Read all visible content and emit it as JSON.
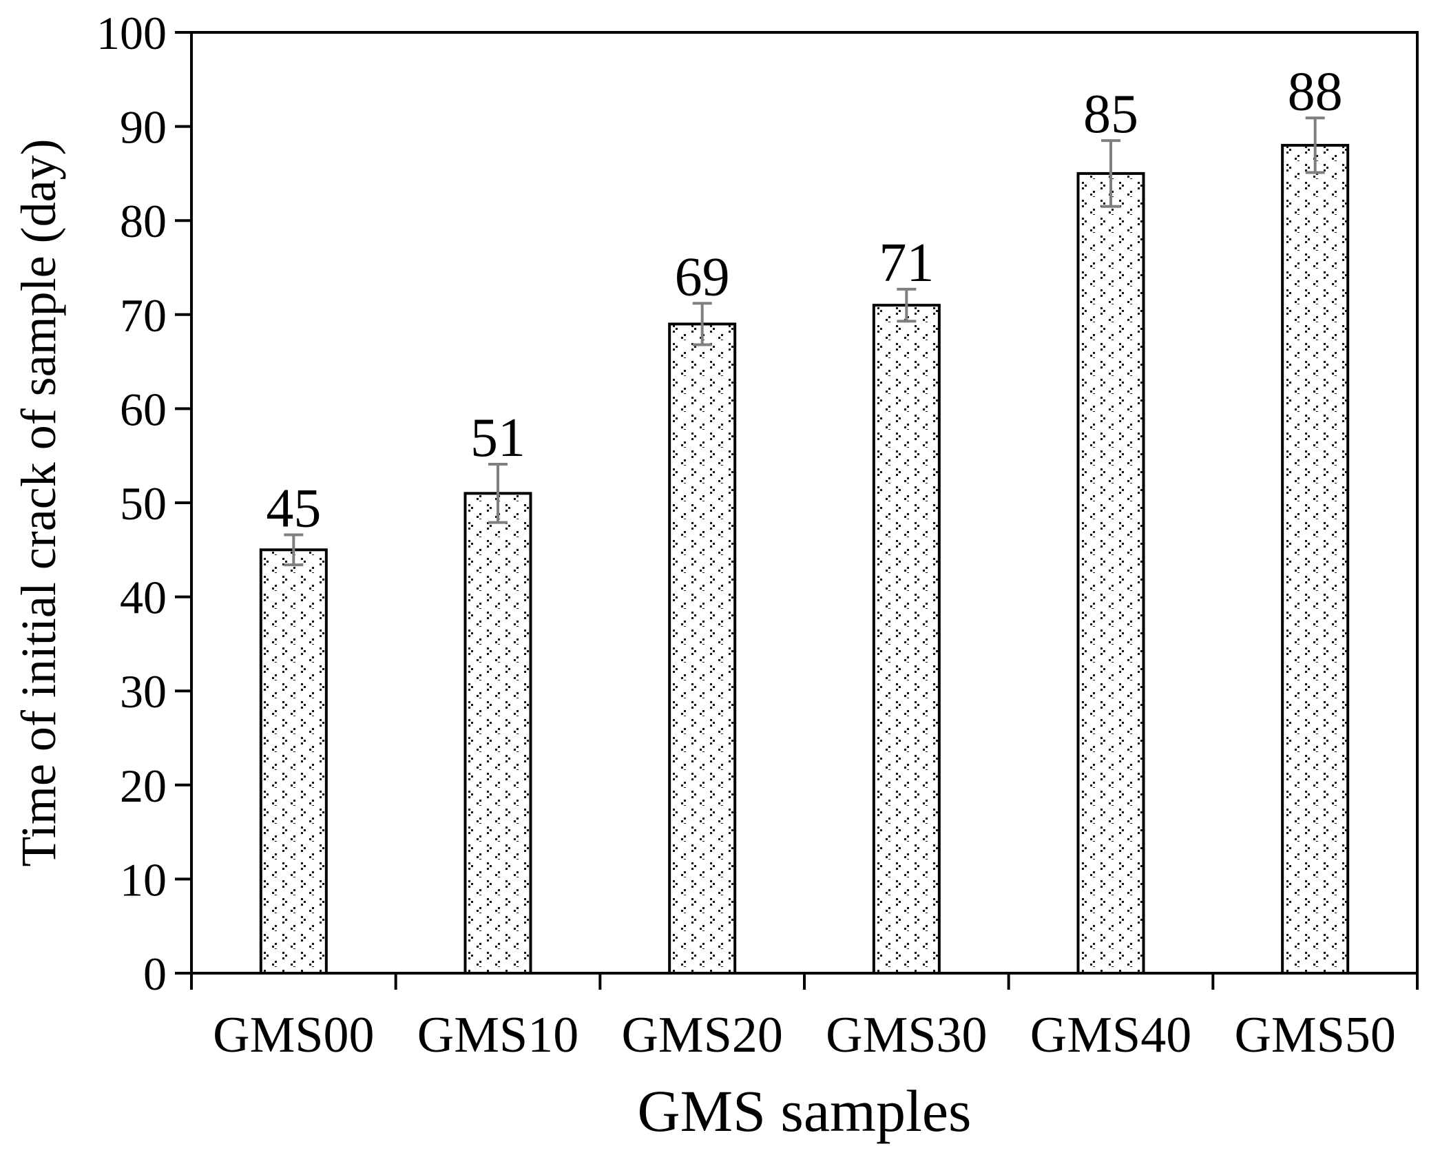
{
  "figure": {
    "background": "#ffffff"
  },
  "chart_data": {
    "type": "bar",
    "title": "",
    "xlabel": "GMS samples",
    "ylabel": "Time of initial crack of sample (day)",
    "categories": [
      "GMS00",
      "GMS10",
      "GMS20",
      "GMS30",
      "GMS40",
      "GMS50"
    ],
    "values": [
      45,
      51,
      69,
      71,
      85,
      88
    ],
    "bar_value_labels": [
      "45",
      "51",
      "69",
      "71",
      "85",
      "88"
    ],
    "error_bars": [
      1.6,
      3.1,
      2.2,
      1.7,
      3.5,
      2.9
    ],
    "yticks": [
      0,
      10,
      20,
      30,
      40,
      50,
      60,
      70,
      80,
      90,
      100
    ],
    "ylim": [
      0,
      100
    ],
    "grid": "off",
    "legend": "none",
    "bar_fill_pattern": "divot",
    "colors": {
      "bar_outline": "#000000",
      "bar_background": "#ffffff",
      "pattern_dots": "#141414",
      "error_bar": "#7f7f7f",
      "axis": "#000000",
      "text": "#000000"
    }
  }
}
